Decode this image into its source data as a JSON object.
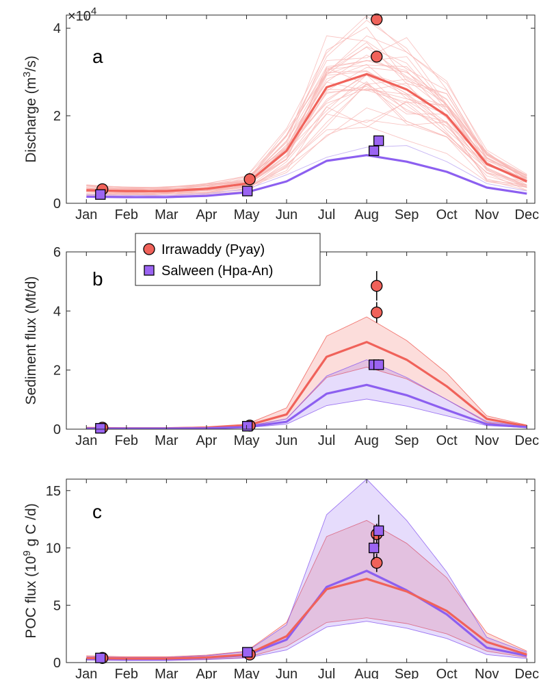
{
  "colors": {
    "irrawaddy": "#f0625a",
    "irrawaddy_light": "#f7b7b4",
    "salween": "#8c5ff0",
    "salween_light": "#c9b8f5",
    "irrawaddy_marker": "#f0625a",
    "salween_marker": "#9b64f2"
  },
  "legend": {
    "irrawaddy": "Irrawaddy (Pyay)",
    "salween": "Salween (Hpa-An)",
    "placement": "top-left of panel b"
  },
  "chart_data": [
    {
      "type": "line",
      "panel": "a",
      "ylabel": "Discharge (m³/s)",
      "ylabel_parts": {
        "pre": "Discharge (m",
        "sup": "3",
        "post": "/s)"
      },
      "yscale_label": "×10",
      "yscale_exp": "4",
      "ylim": [
        0,
        4.3
      ],
      "yticks": [
        0,
        2,
        4
      ],
      "xlim": [
        0.5,
        12.2
      ],
      "months": [
        1,
        2,
        3,
        4,
        5,
        6,
        7,
        8,
        9,
        10,
        11,
        12
      ],
      "month_labels": [
        "Jan",
        "Feb",
        "Mar",
        "Apr",
        "May",
        "Jun",
        "Jul",
        "Aug",
        "Sep",
        "Oct",
        "Nov",
        "Dec"
      ],
      "series": [
        {
          "key": "irrawaddy",
          "values": [
            0.3,
            0.28,
            0.28,
            0.33,
            0.45,
            1.2,
            2.65,
            2.95,
            2.6,
            2.0,
            0.9,
            0.5
          ]
        },
        {
          "key": "salween",
          "values": [
            0.15,
            0.14,
            0.14,
            0.17,
            0.25,
            0.5,
            0.97,
            1.1,
            0.95,
            0.72,
            0.36,
            0.22
          ]
        }
      ],
      "thin_irrawaddy_count": 36,
      "thin_salween": [
        0.2,
        0.18,
        0.18,
        0.22,
        0.32,
        0.65,
        1.05,
        1.28,
        1.32,
        0.95,
        0.45,
        0.28
      ],
      "observations": [
        {
          "key": "irrawaddy",
          "x": 1.4,
          "y": 0.32
        },
        {
          "key": "irrawaddy",
          "x": 5.08,
          "y": 0.55
        },
        {
          "key": "irrawaddy",
          "x": 8.25,
          "y": 3.35
        },
        {
          "key": "irrawaddy",
          "x": 8.25,
          "y": 4.2
        },
        {
          "key": "salween",
          "x": 1.35,
          "y": 0.2
        },
        {
          "key": "salween",
          "x": 5.02,
          "y": 0.28
        },
        {
          "key": "salween",
          "x": 8.18,
          "y": 1.2
        },
        {
          "key": "salween",
          "x": 8.3,
          "y": 1.43
        }
      ]
    },
    {
      "type": "area",
      "panel": "b",
      "ylabel": "Sediment flux (Mt/d)",
      "ylim": [
        0,
        6
      ],
      "yticks": [
        0,
        2,
        4,
        6
      ],
      "xlim": [
        0.5,
        12.2
      ],
      "months": [
        1,
        2,
        3,
        4,
        5,
        6,
        7,
        8,
        9,
        10,
        11,
        12
      ],
      "month_labels": [
        "Jan",
        "Feb",
        "Mar",
        "Apr",
        "May",
        "Jun",
        "Jul",
        "Aug",
        "Sep",
        "Oct",
        "Nov",
        "Dec"
      ],
      "series": [
        {
          "key": "irrawaddy",
          "values": [
            0.04,
            0.03,
            0.03,
            0.05,
            0.12,
            0.5,
            2.45,
            2.95,
            2.35,
            1.45,
            0.35,
            0.1
          ],
          "lower": [
            0.02,
            0.02,
            0.02,
            0.03,
            0.08,
            0.35,
            1.75,
            2.1,
            1.7,
            1.0,
            0.22,
            0.06
          ],
          "upper": [
            0.06,
            0.05,
            0.05,
            0.08,
            0.17,
            0.72,
            3.15,
            3.8,
            3.0,
            1.9,
            0.45,
            0.14
          ]
        },
        {
          "key": "salween",
          "values": [
            0.02,
            0.02,
            0.02,
            0.03,
            0.07,
            0.25,
            1.2,
            1.5,
            1.15,
            0.65,
            0.17,
            0.07
          ],
          "lower": [
            0.01,
            0.01,
            0.01,
            0.02,
            0.05,
            0.17,
            0.8,
            1.02,
            0.78,
            0.45,
            0.12,
            0.05
          ],
          "upper": [
            0.03,
            0.03,
            0.03,
            0.04,
            0.1,
            0.35,
            1.8,
            2.35,
            1.75,
            1.0,
            0.26,
            0.1
          ]
        }
      ],
      "observations": [
        {
          "key": "irrawaddy",
          "x": 1.4,
          "y": 0.05,
          "err": 0
        },
        {
          "key": "irrawaddy",
          "x": 5.08,
          "y": 0.12,
          "err": 0
        },
        {
          "key": "irrawaddy",
          "x": 8.25,
          "y": 3.95,
          "err": 0.35
        },
        {
          "key": "irrawaddy",
          "x": 8.25,
          "y": 4.85,
          "err": 0.5
        },
        {
          "key": "salween",
          "x": 1.35,
          "y": 0.03,
          "err": 0
        },
        {
          "key": "salween",
          "x": 5.02,
          "y": 0.1,
          "err": 0
        },
        {
          "key": "salween",
          "x": 8.18,
          "y": 2.18,
          "err": 0.18
        },
        {
          "key": "salween",
          "x": 8.3,
          "y": 2.18,
          "err": 0.18
        }
      ]
    },
    {
      "type": "area",
      "panel": "c",
      "ylabel": "POC flux (10⁹ g C /d)",
      "ylabel_parts": {
        "pre": "POC flux (10",
        "sup": "9",
        "post": " g C /d)"
      },
      "ylim": [
        0,
        16
      ],
      "yticks": [
        0,
        5,
        10,
        15
      ],
      "xlim": [
        0.5,
        12.2
      ],
      "months": [
        1,
        2,
        3,
        4,
        5,
        6,
        7,
        8,
        9,
        10,
        11,
        12
      ],
      "month_labels": [
        "Jan",
        "Feb",
        "Mar",
        "Apr",
        "May",
        "Jun",
        "Jul",
        "Aug",
        "Sep",
        "Oct",
        "Nov",
        "Dec"
      ],
      "series": [
        {
          "key": "irrawaddy",
          "values": [
            0.4,
            0.35,
            0.35,
            0.45,
            0.7,
            2.3,
            6.4,
            7.3,
            6.2,
            4.5,
            1.8,
            0.7
          ],
          "lower": [
            0.25,
            0.22,
            0.22,
            0.28,
            0.45,
            1.4,
            3.5,
            3.9,
            3.4,
            2.5,
            1.0,
            0.45
          ],
          "upper": [
            0.6,
            0.5,
            0.5,
            0.65,
            1.0,
            3.5,
            11.0,
            12.4,
            10.4,
            7.4,
            2.6,
            1.0
          ]
        },
        {
          "key": "salween",
          "values": [
            0.35,
            0.3,
            0.3,
            0.42,
            0.65,
            2.0,
            6.6,
            8.0,
            6.3,
            4.2,
            1.3,
            0.6
          ],
          "lower": [
            0.2,
            0.18,
            0.18,
            0.25,
            0.4,
            1.1,
            3.1,
            3.6,
            3.0,
            2.1,
            0.7,
            0.35
          ],
          "upper": [
            0.5,
            0.45,
            0.45,
            0.6,
            0.95,
            3.3,
            12.9,
            16.0,
            12.4,
            7.9,
            2.2,
            0.9
          ]
        }
      ],
      "observations": [
        {
          "key": "irrawaddy",
          "x": 1.4,
          "y": 0.4,
          "err": 0
        },
        {
          "key": "irrawaddy",
          "x": 5.08,
          "y": 0.7,
          "err": 0
        },
        {
          "key": "irrawaddy",
          "x": 8.25,
          "y": 8.7,
          "err": 0.8
        },
        {
          "key": "irrawaddy",
          "x": 8.25,
          "y": 11.2,
          "err": 0.9
        },
        {
          "key": "salween",
          "x": 1.35,
          "y": 0.4,
          "err": 0
        },
        {
          "key": "salween",
          "x": 5.02,
          "y": 0.9,
          "err": 0
        },
        {
          "key": "salween",
          "x": 8.18,
          "y": 10.0,
          "err": 1.0
        },
        {
          "key": "salween",
          "x": 8.3,
          "y": 11.5,
          "err": 1.4
        }
      ]
    }
  ],
  "panels": [
    "a",
    "b",
    "c"
  ]
}
